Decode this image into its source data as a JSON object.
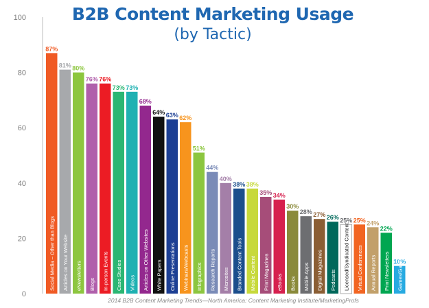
{
  "title": "B2B Content Marketing Usage",
  "subtitle": "(by Tactic)",
  "source": "2014 B2B Content Marketing Trends—North America: Content Marketing Institute/MarketingProfs",
  "chart_data": {
    "type": "bar",
    "title": "B2B Content Marketing Usage",
    "subtitle": "(by Tactic)",
    "xlabel": "",
    "ylabel": "",
    "ylim": [
      0,
      100
    ],
    "yticks": [
      0,
      20,
      40,
      60,
      80,
      100
    ],
    "grid": false,
    "value_suffix": "%",
    "categories": [
      "Social Media – Other than Blogs",
      "Articles on Your Website",
      "eNewsletters",
      "Blogs",
      "In-person Events",
      "Case Studies",
      "Videos",
      "Articles on Other Websites",
      "White Papers",
      "Online Presentations",
      "Webinars/Webcasts",
      "Infographics",
      "Research Reports",
      "Microsites",
      "Branded Content Tools",
      "Mobile Content",
      "Print Magazines",
      "eBooks",
      "Books",
      "Mobile Apps",
      "Digital Magazines",
      "Podcasts",
      "Licensed/Syndicated Content",
      "Virtual Conferences",
      "Annual Reports",
      "Print Newsletters",
      "Games/Gamification"
    ],
    "values": [
      87,
      81,
      80,
      76,
      76,
      73,
      73,
      68,
      64,
      63,
      62,
      51,
      44,
      40,
      38,
      38,
      35,
      34,
      30,
      28,
      27,
      26,
      25,
      25,
      24,
      22,
      10
    ],
    "colors": [
      "#f05a24",
      "#a7a9ac",
      "#8dc63f",
      "#b05fab",
      "#ec1c24",
      "#2bb673",
      "#1fb1b2",
      "#93288e",
      "#111111",
      "#1c3f94",
      "#f7941d",
      "#8cc63f",
      "#7a8bb7",
      "#a47fa8",
      "#1b4e8c",
      "#c7d93b",
      "#a64d79",
      "#d6204e",
      "#8a8a3a",
      "#6d6e71",
      "#8b5e34",
      "#00685b",
      "#ffffff",
      "#f26522",
      "#c2a06a",
      "#00a651",
      "#27aae1"
    ],
    "label_colors": [
      "#f05a24",
      "#a7a9ac",
      "#8dc63f",
      "#b05fab",
      "#ec1c24",
      "#2bb673",
      "#1fb1b2",
      "#93288e",
      "#111111",
      "#1c3f94",
      "#f7941d",
      "#8cc63f",
      "#7a8bb7",
      "#a47fa8",
      "#1b4e8c",
      "#c7d93b",
      "#a64d79",
      "#d6204e",
      "#8a8a3a",
      "#6d6e71",
      "#8b5e34",
      "#00685b",
      "#6d6e71",
      "#f26522",
      "#c2a06a",
      "#00a651",
      "#27aae1"
    ]
  }
}
